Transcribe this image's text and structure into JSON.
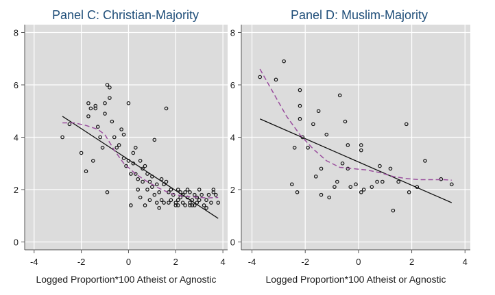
{
  "chart_data": [
    {
      "type": "scatter",
      "title": "Panel C: Christian-Majority",
      "xlabel": "Logged Proportion*100 Atheist or Agnostic",
      "ylabel": "",
      "xlim": [
        -4.4,
        4.2
      ],
      "ylim": [
        -0.3,
        8.3
      ],
      "xticks": [
        -4,
        -2,
        0,
        2,
        4
      ],
      "yticks": [
        0,
        2,
        4,
        6,
        8
      ],
      "xtick_labels": [
        "-4",
        "-2",
        "0",
        "2",
        "4"
      ],
      "ytick_labels": [
        "0",
        "2",
        "4",
        "6",
        "8"
      ],
      "grid": true,
      "points": [
        [
          -2.8,
          4.0
        ],
        [
          -2.5,
          4.5
        ],
        [
          -2.0,
          3.4
        ],
        [
          -1.8,
          2.7
        ],
        [
          -1.7,
          5.3
        ],
        [
          -1.7,
          4.8
        ],
        [
          -1.6,
          5.1
        ],
        [
          -1.5,
          3.1
        ],
        [
          -1.4,
          5.2
        ],
        [
          -1.4,
          5.1
        ],
        [
          -1.3,
          4.4
        ],
        [
          -1.2,
          4.0
        ],
        [
          -1.1,
          3.6
        ],
        [
          -1.0,
          5.3
        ],
        [
          -1.0,
          4.9
        ],
        [
          -0.9,
          6.0
        ],
        [
          -0.8,
          5.9
        ],
        [
          -0.8,
          5.5
        ],
        [
          -0.9,
          1.9
        ],
        [
          -0.7,
          4.6
        ],
        [
          -0.6,
          4.0
        ],
        [
          -0.5,
          3.6
        ],
        [
          -0.4,
          3.7
        ],
        [
          -0.3,
          4.3
        ],
        [
          -0.2,
          4.1
        ],
        [
          -0.2,
          3.2
        ],
        [
          -0.1,
          2.9
        ],
        [
          0.0,
          5.3
        ],
        [
          0.0,
          3.1
        ],
        [
          0.1,
          2.6
        ],
        [
          0.1,
          1.4
        ],
        [
          0.2,
          3.4
        ],
        [
          0.2,
          3.0
        ],
        [
          0.3,
          3.6
        ],
        [
          0.3,
          2.6
        ],
        [
          0.4,
          2.4
        ],
        [
          0.4,
          2.0
        ],
        [
          0.5,
          3.1
        ],
        [
          0.5,
          1.7
        ],
        [
          0.6,
          2.8
        ],
        [
          0.6,
          2.3
        ],
        [
          0.7,
          1.4
        ],
        [
          0.7,
          2.9
        ],
        [
          0.8,
          2.6
        ],
        [
          0.8,
          2.0
        ],
        [
          0.9,
          2.3
        ],
        [
          0.9,
          1.6
        ],
        [
          1.0,
          2.5
        ],
        [
          1.0,
          2.1
        ],
        [
          1.1,
          1.8
        ],
        [
          1.1,
          3.9
        ],
        [
          1.2,
          2.2
        ],
        [
          1.2,
          1.5
        ],
        [
          1.3,
          1.9
        ],
        [
          1.3,
          1.3
        ],
        [
          1.4,
          2.4
        ],
        [
          1.4,
          1.6
        ],
        [
          1.5,
          2.2
        ],
        [
          1.5,
          1.5
        ],
        [
          1.6,
          5.1
        ],
        [
          1.6,
          2.3
        ],
        [
          1.7,
          1.9
        ],
        [
          1.7,
          1.5
        ],
        [
          1.8,
          2.0
        ],
        [
          1.8,
          1.6
        ],
        [
          1.9,
          1.8
        ],
        [
          2.0,
          1.5
        ],
        [
          2.0,
          1.4
        ],
        [
          2.1,
          1.6
        ],
        [
          2.1,
          2.0
        ],
        [
          2.2,
          1.7
        ],
        [
          2.2,
          1.9
        ],
        [
          2.3,
          1.8
        ],
        [
          2.3,
          1.5
        ],
        [
          2.4,
          1.9
        ],
        [
          2.4,
          1.4
        ],
        [
          2.5,
          2.0
        ],
        [
          2.5,
          1.7
        ],
        [
          2.6,
          1.5
        ],
        [
          2.6,
          1.9
        ],
        [
          2.7,
          1.6
        ],
        [
          2.7,
          1.4
        ],
        [
          2.8,
          1.8
        ],
        [
          2.9,
          1.7
        ],
        [
          2.9,
          1.5
        ],
        [
          3.0,
          2.0
        ],
        [
          3.0,
          1.6
        ],
        [
          3.1,
          1.8
        ],
        [
          3.2,
          1.4
        ],
        [
          3.3,
          1.6
        ],
        [
          3.3,
          1.3
        ],
        [
          3.4,
          1.8
        ],
        [
          3.5,
          1.5
        ],
        [
          3.6,
          1.9
        ],
        [
          3.6,
          2.0
        ],
        [
          3.7,
          1.8
        ],
        [
          3.8,
          1.5
        ],
        [
          2.1,
          1.4
        ],
        [
          2.6,
          1.4
        ],
        [
          2.8,
          1.4
        ]
      ],
      "fit_line": [
        [
          -2.8,
          4.8
        ],
        [
          3.8,
          0.9
        ]
      ],
      "smooth_curve": [
        [
          -2.8,
          4.55
        ],
        [
          -2.3,
          4.55
        ],
        [
          -1.8,
          4.45
        ],
        [
          -1.3,
          4.3
        ],
        [
          -1.0,
          4.1
        ],
        [
          -0.6,
          3.5
        ],
        [
          -0.2,
          3.0
        ],
        [
          0.3,
          2.6
        ],
        [
          0.8,
          2.3
        ],
        [
          1.3,
          2.05
        ],
        [
          1.8,
          1.85
        ],
        [
          2.3,
          1.75
        ],
        [
          2.8,
          1.72
        ],
        [
          3.3,
          1.68
        ],
        [
          3.8,
          1.7
        ]
      ]
    },
    {
      "type": "scatter",
      "title": "Panel D: Muslim-Majority",
      "xlabel": "Logged Proportion*100 Atheist or Agnostic",
      "ylabel": "",
      "xlim": [
        -4.4,
        4.2
      ],
      "ylim": [
        -0.3,
        8.3
      ],
      "xticks": [
        -4,
        -2,
        0,
        2,
        4
      ],
      "yticks": [
        0,
        2,
        4,
        6,
        8
      ],
      "xtick_labels": [
        "-4",
        "-2",
        "0",
        "2",
        "4"
      ],
      "ytick_labels": [
        "0",
        "2",
        "4",
        "6",
        "8"
      ],
      "grid": true,
      "points": [
        [
          -3.7,
          6.3
        ],
        [
          -3.1,
          6.2
        ],
        [
          -2.8,
          6.9
        ],
        [
          -2.5,
          2.2
        ],
        [
          -2.4,
          3.6
        ],
        [
          -2.3,
          1.9
        ],
        [
          -2.2,
          5.8
        ],
        [
          -2.2,
          5.2
        ],
        [
          -2.2,
          4.7
        ],
        [
          -2.1,
          4.0
        ],
        [
          -1.9,
          3.6
        ],
        [
          -1.7,
          4.5
        ],
        [
          -1.6,
          2.5
        ],
        [
          -1.5,
          5.0
        ],
        [
          -1.4,
          2.8
        ],
        [
          -1.4,
          1.8
        ],
        [
          -1.2,
          4.1
        ],
        [
          -1.1,
          1.7
        ],
        [
          -0.9,
          2.1
        ],
        [
          -0.8,
          2.3
        ],
        [
          -0.7,
          5.6
        ],
        [
          -0.6,
          3.0
        ],
        [
          -0.5,
          4.6
        ],
        [
          -0.4,
          3.7
        ],
        [
          -0.4,
          2.8
        ],
        [
          -0.3,
          2.1
        ],
        [
          -0.1,
          2.2
        ],
        [
          0.1,
          3.7
        ],
        [
          0.1,
          3.5
        ],
        [
          0.1,
          1.9
        ],
        [
          0.2,
          2.0
        ],
        [
          0.5,
          2.1
        ],
        [
          0.7,
          2.3
        ],
        [
          0.8,
          2.9
        ],
        [
          0.9,
          2.3
        ],
        [
          1.2,
          2.8
        ],
        [
          1.3,
          1.2
        ],
        [
          1.5,
          2.3
        ],
        [
          1.8,
          4.5
        ],
        [
          2.2,
          2.1
        ],
        [
          2.5,
          3.1
        ],
        [
          3.1,
          2.4
        ],
        [
          3.5,
          2.2
        ],
        [
          1.9,
          1.9
        ]
      ],
      "fit_line": [
        [
          -3.7,
          4.7
        ],
        [
          3.5,
          1.5
        ]
      ],
      "smooth_curve": [
        [
          -3.7,
          6.6
        ],
        [
          -3.2,
          5.7
        ],
        [
          -2.7,
          4.8
        ],
        [
          -2.2,
          4.1
        ],
        [
          -1.7,
          3.55
        ],
        [
          -1.2,
          3.1
        ],
        [
          -0.7,
          2.85
        ],
        [
          -0.2,
          2.8
        ],
        [
          0.3,
          2.75
        ],
        [
          0.8,
          2.65
        ],
        [
          1.3,
          2.5
        ],
        [
          1.8,
          2.42
        ],
        [
          2.3,
          2.38
        ],
        [
          2.8,
          2.38
        ],
        [
          3.2,
          2.38
        ],
        [
          3.5,
          2.36
        ]
      ]
    }
  ]
}
